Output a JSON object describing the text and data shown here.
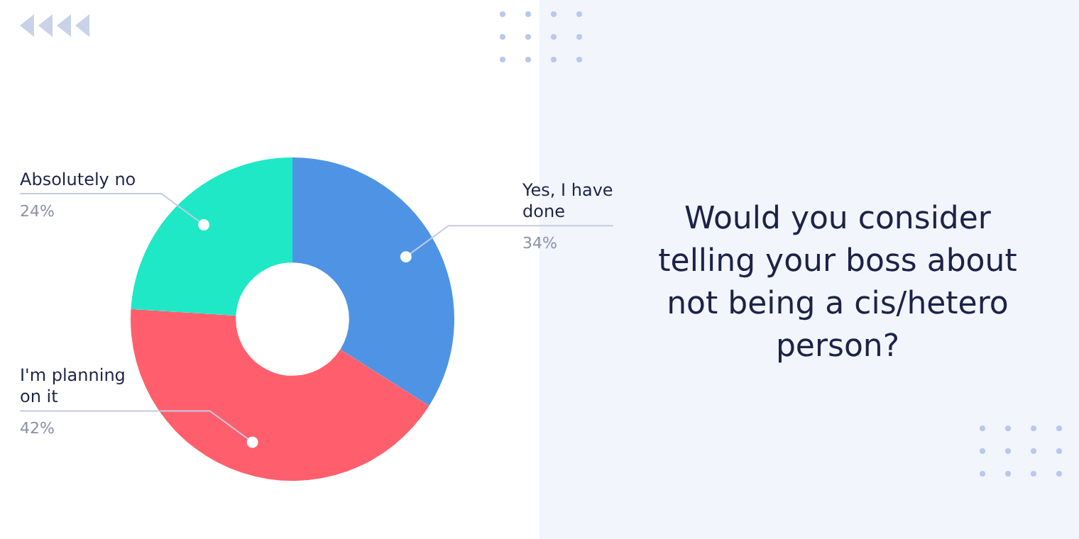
{
  "chart_data": {
    "type": "donut",
    "title": "Would you consider telling your boss about not being a cis/hetero person?",
    "categories": [
      "Yes, I have done",
      "I'm planning on it",
      "Absolutely no"
    ],
    "values": [
      34,
      42,
      24
    ],
    "colors": [
      "#4f94e4",
      "#ff5f6d",
      "#1ee8c6"
    ],
    "value_labels": [
      "34%",
      "42%",
      "24%"
    ]
  }
}
